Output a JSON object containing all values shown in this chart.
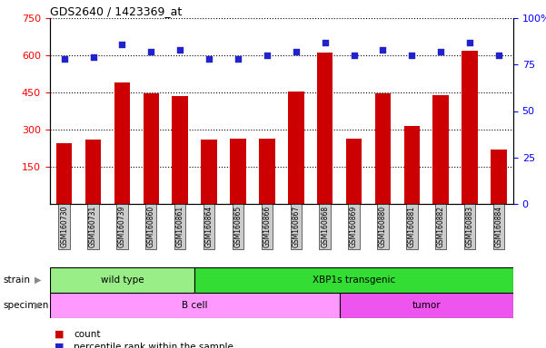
{
  "title": "GDS2640 / 1423369_at",
  "samples": [
    "GSM160730",
    "GSM160731",
    "GSM160739",
    "GSM160860",
    "GSM160861",
    "GSM160864",
    "GSM160865",
    "GSM160866",
    "GSM160867",
    "GSM160868",
    "GSM160869",
    "GSM160880",
    "GSM160881",
    "GSM160882",
    "GSM160883",
    "GSM160884"
  ],
  "counts": [
    245,
    258,
    490,
    445,
    435,
    258,
    265,
    262,
    455,
    610,
    265,
    445,
    315,
    440,
    620,
    220
  ],
  "percentiles": [
    78,
    79,
    86,
    82,
    83,
    78,
    78,
    80,
    82,
    87,
    80,
    83,
    80,
    82,
    87,
    80
  ],
  "ylim_left": [
    0,
    750
  ],
  "yticks_left": [
    150,
    300,
    450,
    600,
    750
  ],
  "ylim_right": [
    0,
    100
  ],
  "yticks_right": [
    0,
    25,
    50,
    75,
    100
  ],
  "strain_groups": [
    {
      "label": "wild type",
      "start": 0,
      "end": 5,
      "color": "#99EE88"
    },
    {
      "label": "XBP1s transgenic",
      "start": 5,
      "end": 16,
      "color": "#33DD33"
    }
  ],
  "specimen_groups": [
    {
      "label": "B cell",
      "start": 0,
      "end": 10,
      "color": "#FF99FF"
    },
    {
      "label": "tumor",
      "start": 10,
      "end": 16,
      "color": "#EE55EE"
    }
  ],
  "bar_color": "#CC0000",
  "dot_color": "#2222CC",
  "bg_color": "#CCCCCC",
  "strain_label": "strain",
  "specimen_label": "specimen",
  "legend_count_label": "count",
  "legend_percentile_label": "percentile rank within the sample"
}
